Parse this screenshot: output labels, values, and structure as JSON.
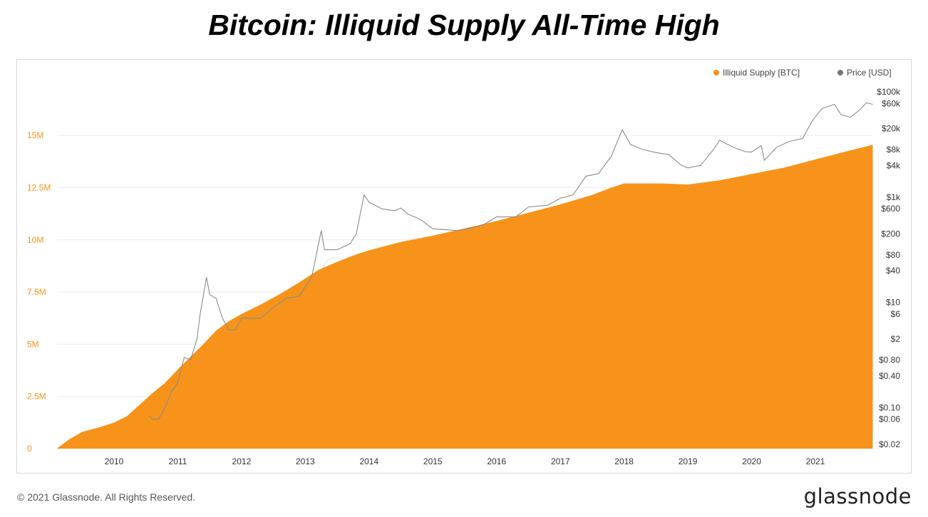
{
  "title": "Bitcoin: Illiquid Supply All-Time High",
  "footer": {
    "copyright": "© 2021 Glassnode. All Rights Reserved.",
    "brand": "glassnode"
  },
  "colors": {
    "supply": "#f7931a",
    "price": "#8a8a8a",
    "grid": "#ececec"
  },
  "chart_data": {
    "type": "area",
    "legend_position": "top-right",
    "grid": true,
    "x_ticks": [
      "2010",
      "2011",
      "2012",
      "2013",
      "2014",
      "2015",
      "2016",
      "2017",
      "2018",
      "2019",
      "2020",
      "2021"
    ],
    "y_left": {
      "ticks": [
        "0",
        "2.5M",
        "5M",
        "7.5M",
        "10M",
        "12.5M",
        "15M"
      ],
      "range": [
        0,
        17000000
      ]
    },
    "y_right": {
      "scale": "log",
      "ticks": [
        "$100k",
        "$60k",
        "$20k",
        "$8k",
        "$4k",
        "$1k",
        "$600",
        "$200",
        "$80",
        "$40",
        "$10",
        "$6",
        "$2",
        "$0.80",
        "$0.40",
        "$0.10",
        "$0.06",
        "$0.02"
      ],
      "range": [
        0.02,
        100000
      ]
    },
    "series": [
      {
        "name": "Illiquid Supply [BTC]",
        "kind": "area",
        "axis": "left",
        "points": [
          [
            2009.1,
            0
          ],
          [
            2009.3,
            450000
          ],
          [
            2009.5,
            800000
          ],
          [
            2009.8,
            1050000
          ],
          [
            2010.0,
            1250000
          ],
          [
            2010.2,
            1550000
          ],
          [
            2010.4,
            2100000
          ],
          [
            2010.6,
            2650000
          ],
          [
            2010.8,
            3150000
          ],
          [
            2011.0,
            3800000
          ],
          [
            2011.2,
            4400000
          ],
          [
            2011.4,
            5000000
          ],
          [
            2011.6,
            5650000
          ],
          [
            2011.8,
            6100000
          ],
          [
            2012.0,
            6450000
          ],
          [
            2012.3,
            6900000
          ],
          [
            2012.6,
            7400000
          ],
          [
            2012.9,
            7950000
          ],
          [
            2013.2,
            8550000
          ],
          [
            2013.5,
            8950000
          ],
          [
            2013.8,
            9300000
          ],
          [
            2014.0,
            9500000
          ],
          [
            2014.5,
            9900000
          ],
          [
            2015.0,
            10200000
          ],
          [
            2015.5,
            10550000
          ],
          [
            2016.0,
            10900000
          ],
          [
            2016.5,
            11300000
          ],
          [
            2017.0,
            11700000
          ],
          [
            2017.5,
            12150000
          ],
          [
            2017.8,
            12500000
          ],
          [
            2018.0,
            12700000
          ],
          [
            2018.3,
            12700000
          ],
          [
            2018.6,
            12700000
          ],
          [
            2019.0,
            12650000
          ],
          [
            2019.5,
            12850000
          ],
          [
            2020.0,
            13150000
          ],
          [
            2020.5,
            13450000
          ],
          [
            2021.0,
            13850000
          ],
          [
            2021.5,
            14250000
          ],
          [
            2021.9,
            14550000
          ]
        ]
      },
      {
        "name": "Price [USD]",
        "kind": "line",
        "axis": "right",
        "points": [
          [
            2010.55,
            0.07
          ],
          [
            2010.6,
            0.06
          ],
          [
            2010.7,
            0.06
          ],
          [
            2010.8,
            0.1
          ],
          [
            2010.9,
            0.2
          ],
          [
            2011.0,
            0.3
          ],
          [
            2011.1,
            0.9
          ],
          [
            2011.2,
            0.8
          ],
          [
            2011.3,
            2.0
          ],
          [
            2011.35,
            6
          ],
          [
            2011.45,
            30
          ],
          [
            2011.5,
            14
          ],
          [
            2011.6,
            12
          ],
          [
            2011.7,
            5
          ],
          [
            2011.8,
            3
          ],
          [
            2011.9,
            3
          ],
          [
            2012.0,
            5
          ],
          [
            2012.1,
            5
          ],
          [
            2012.3,
            5
          ],
          [
            2012.5,
            8
          ],
          [
            2012.7,
            12
          ],
          [
            2012.9,
            13
          ],
          [
            2013.1,
            30
          ],
          [
            2013.25,
            230
          ],
          [
            2013.3,
            100
          ],
          [
            2013.5,
            100
          ],
          [
            2013.7,
            130
          ],
          [
            2013.8,
            200
          ],
          [
            2013.92,
            1100
          ],
          [
            2014.0,
            800
          ],
          [
            2014.2,
            600
          ],
          [
            2014.4,
            550
          ],
          [
            2014.5,
            620
          ],
          [
            2014.6,
            480
          ],
          [
            2014.8,
            380
          ],
          [
            2015.0,
            250
          ],
          [
            2015.2,
            240
          ],
          [
            2015.4,
            230
          ],
          [
            2015.6,
            260
          ],
          [
            2015.8,
            300
          ],
          [
            2016.0,
            420
          ],
          [
            2016.3,
            420
          ],
          [
            2016.5,
            650
          ],
          [
            2016.8,
            700
          ],
          [
            2017.0,
            950
          ],
          [
            2017.2,
            1100
          ],
          [
            2017.4,
            2500
          ],
          [
            2017.6,
            2800
          ],
          [
            2017.8,
            6000
          ],
          [
            2017.97,
            19000
          ],
          [
            2018.1,
            10000
          ],
          [
            2018.3,
            8000
          ],
          [
            2018.5,
            7000
          ],
          [
            2018.7,
            6400
          ],
          [
            2018.9,
            4000
          ],
          [
            2019.0,
            3600
          ],
          [
            2019.2,
            4000
          ],
          [
            2019.4,
            8000
          ],
          [
            2019.5,
            12000
          ],
          [
            2019.7,
            9000
          ],
          [
            2019.9,
            7300
          ],
          [
            2020.0,
            7200
          ],
          [
            2020.15,
            9500
          ],
          [
            2020.2,
            5000
          ],
          [
            2020.4,
            9000
          ],
          [
            2020.6,
            11500
          ],
          [
            2020.8,
            13000
          ],
          [
            2020.95,
            28000
          ],
          [
            2021.1,
            48000
          ],
          [
            2021.3,
            58000
          ],
          [
            2021.4,
            37000
          ],
          [
            2021.55,
            33000
          ],
          [
            2021.7,
            46000
          ],
          [
            2021.8,
            62000
          ],
          [
            2021.9,
            58000
          ]
        ]
      }
    ]
  }
}
